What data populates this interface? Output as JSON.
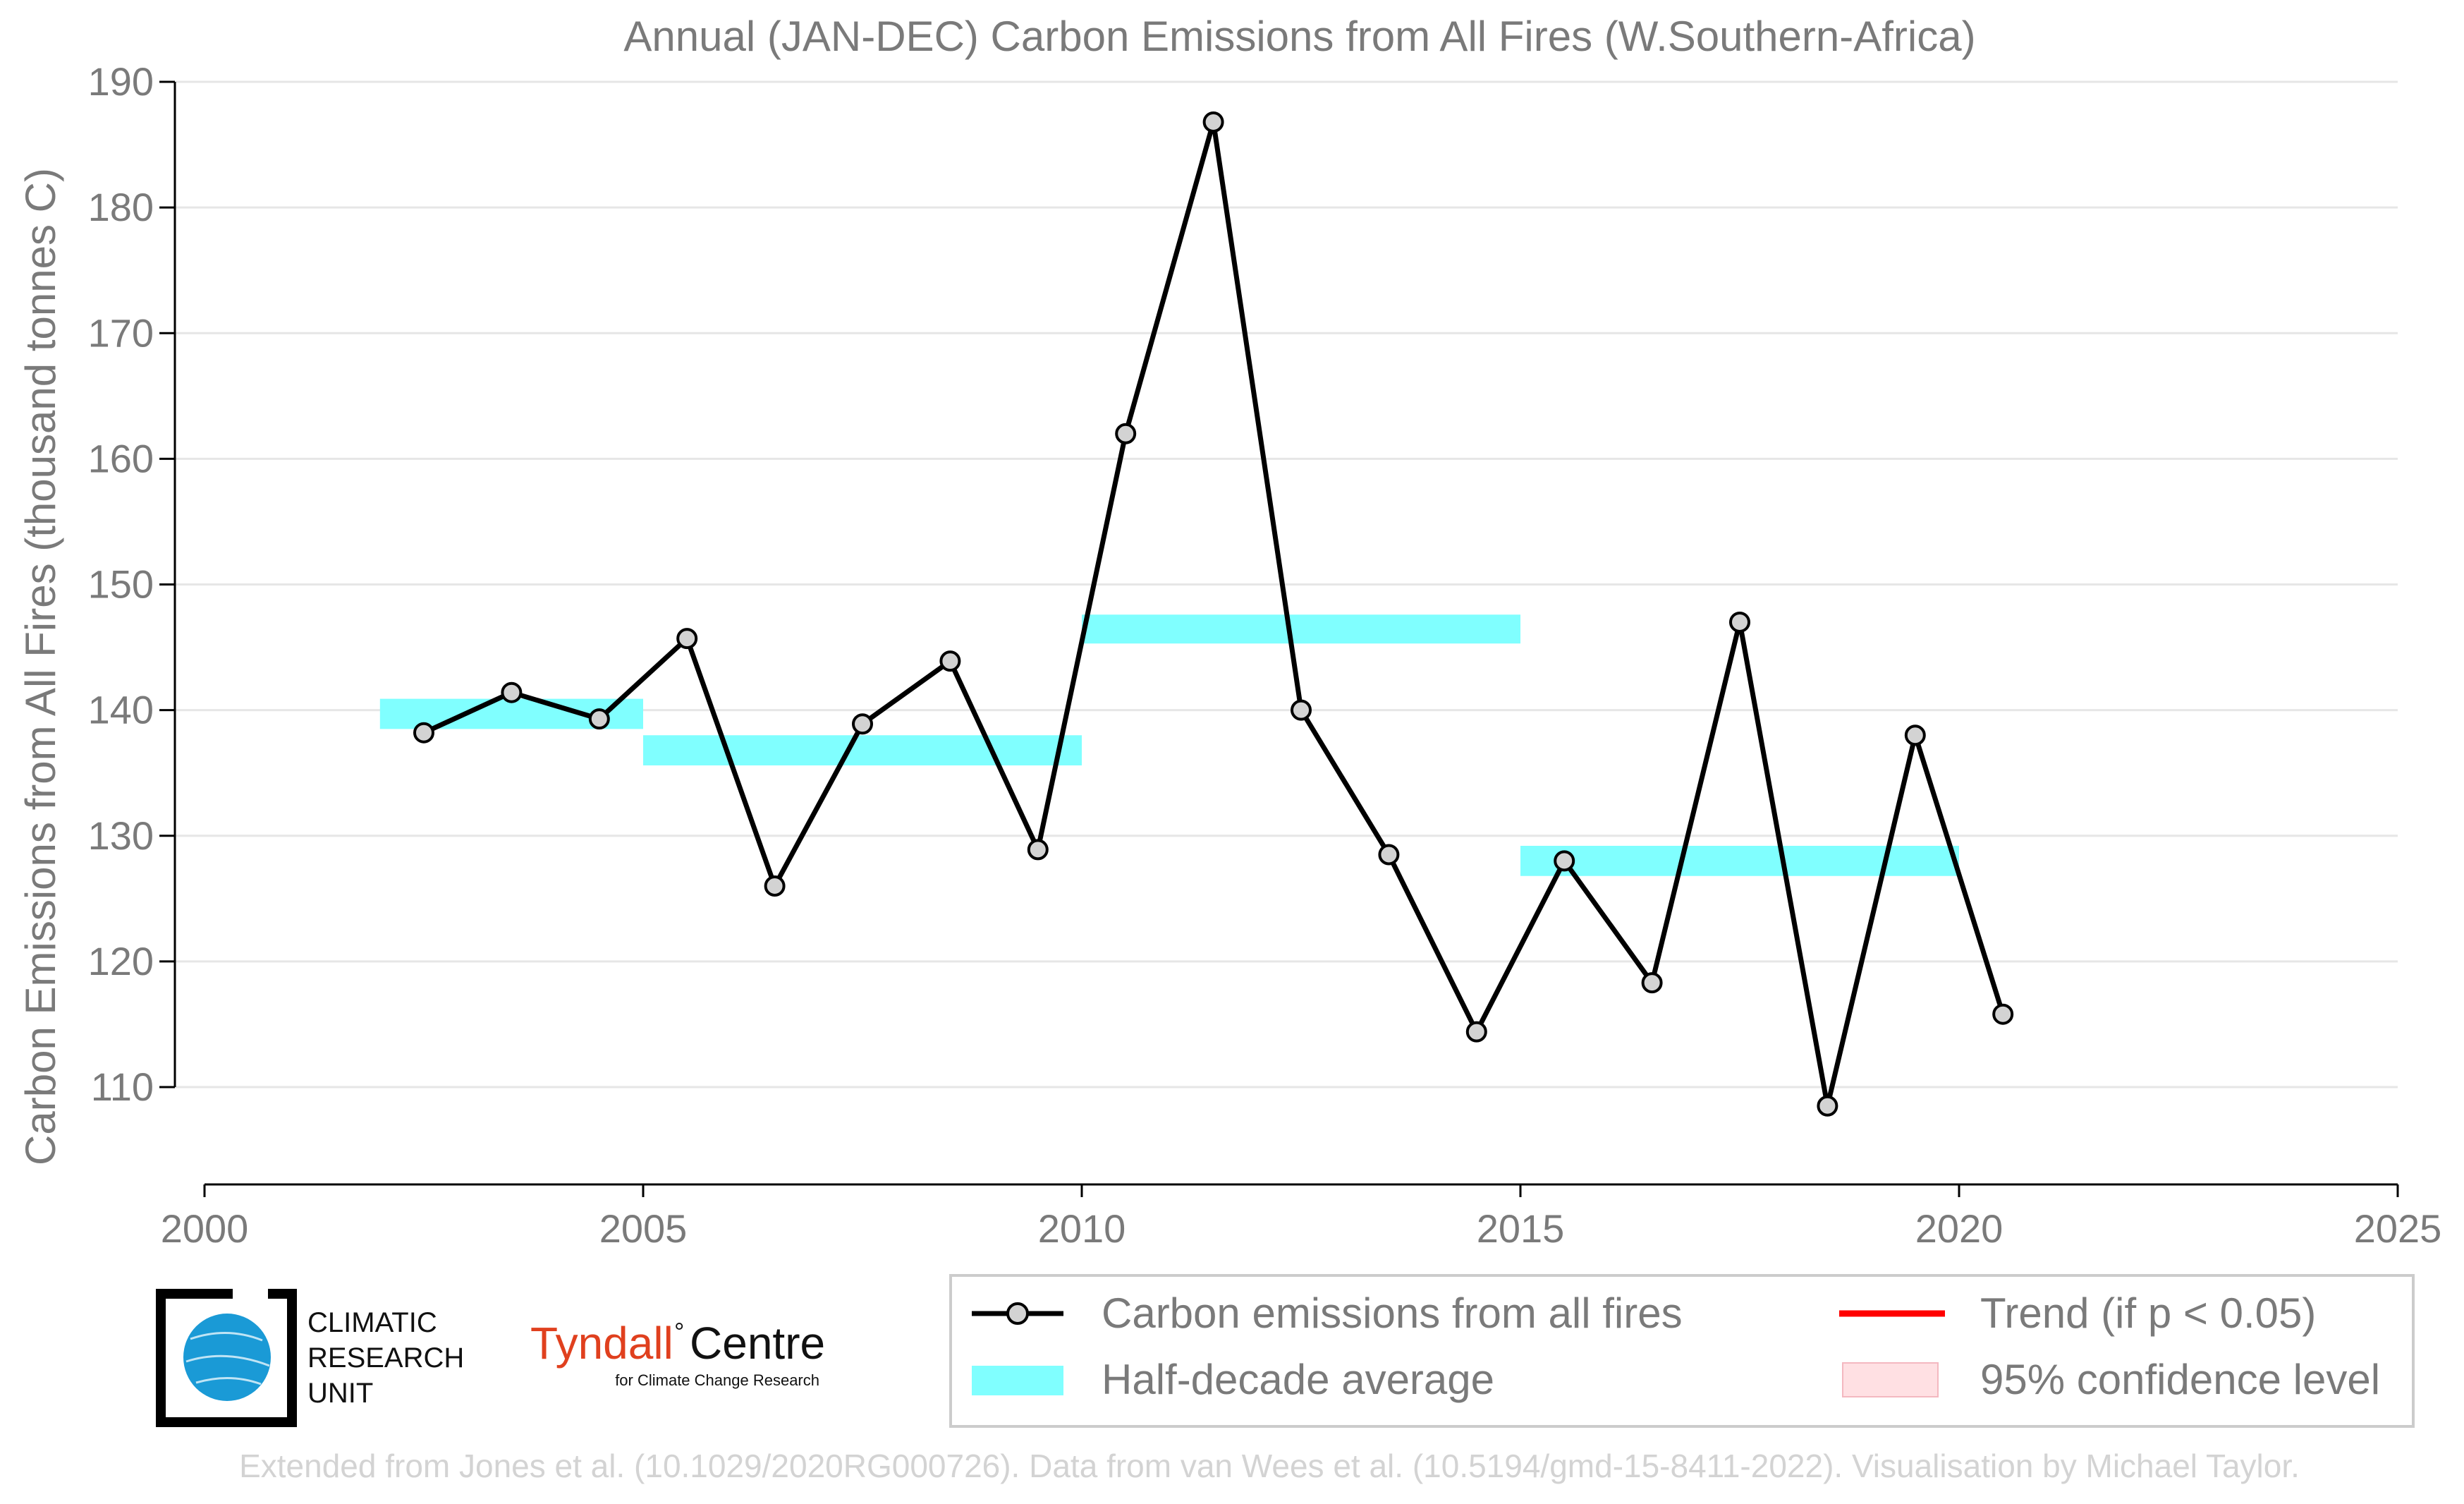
{
  "chart_data": {
    "type": "line",
    "title": "Annual (JAN-DEC) Carbon Emissions from All Fires (W.Southern-Africa)",
    "xlabel": "",
    "ylabel": "Carbon Emissions from All Fires (thousand tonnes C)",
    "xlim": [
      2000,
      2025
    ],
    "ylim": [
      102,
      190
    ],
    "xticks": [
      "2000",
      "2005",
      "2010",
      "2015",
      "2020",
      "2025"
    ],
    "yticks": [
      "110",
      "120",
      "130",
      "140",
      "150",
      "160",
      "170",
      "180",
      "190"
    ],
    "grid": "horizontal",
    "series": [
      {
        "name": "Carbon emissions from all fires",
        "style": "line-with-markers",
        "color": "#000000",
        "marker_color": "#d3d3d3",
        "x": [
          2002.5,
          2003.5,
          2004.5,
          2005.5,
          2006.5,
          2007.5,
          2008.5,
          2009.5,
          2010.5,
          2011.5,
          2012.5,
          2013.5,
          2014.5,
          2015.5,
          2016.5,
          2017.5,
          2018.5,
          2019.5,
          2020.5
        ],
        "y": [
          138.2,
          141.4,
          139.3,
          145.7,
          126.0,
          138.9,
          143.9,
          128.9,
          162.0,
          186.8,
          140.0,
          128.5,
          114.4,
          128.0,
          118.3,
          147.0,
          108.5,
          138.0,
          115.8
        ]
      },
      {
        "name": "Half-decade average",
        "style": "band",
        "color": "#80ffff",
        "segments": [
          {
            "x_start": 2002,
            "x_end": 2005,
            "y_low": 138.5,
            "y_high": 140.9
          },
          {
            "x_start": 2005,
            "x_end": 2010,
            "y_low": 135.6,
            "y_high": 138.0
          },
          {
            "x_start": 2010,
            "x_end": 2015,
            "y_low": 145.3,
            "y_high": 147.6
          },
          {
            "x_start": 2015,
            "x_end": 2020,
            "y_low": 126.8,
            "y_high": 129.2
          }
        ]
      }
    ],
    "legend": {
      "placement": "bottom-right",
      "entries": [
        {
          "label": "Carbon emissions from all fires",
          "kind": "line-marker",
          "color": "#000000"
        },
        {
          "label": "Trend (if p < 0.05)",
          "kind": "line",
          "color": "#ff0000"
        },
        {
          "label": "Half-decade average",
          "kind": "band",
          "color": "#80ffff"
        },
        {
          "label": "95% confidence level",
          "kind": "patch",
          "color": "#ffe0e3"
        }
      ]
    }
  },
  "logos": {
    "cru": [
      "CLIMATIC",
      "RESEARCH",
      "UNIT"
    ],
    "tyndall_main": "Tyndall",
    "tyndall_degree": "°",
    "tyndall_centre": "Centre",
    "tyndall_sub": "for Climate Change Research"
  },
  "footer": "Extended from Jones et al. (10.1029/2020RG000726). Data from van Wees et al. (10.5194/gmd-15-8411-2022). Visualisation by Michael Taylor."
}
